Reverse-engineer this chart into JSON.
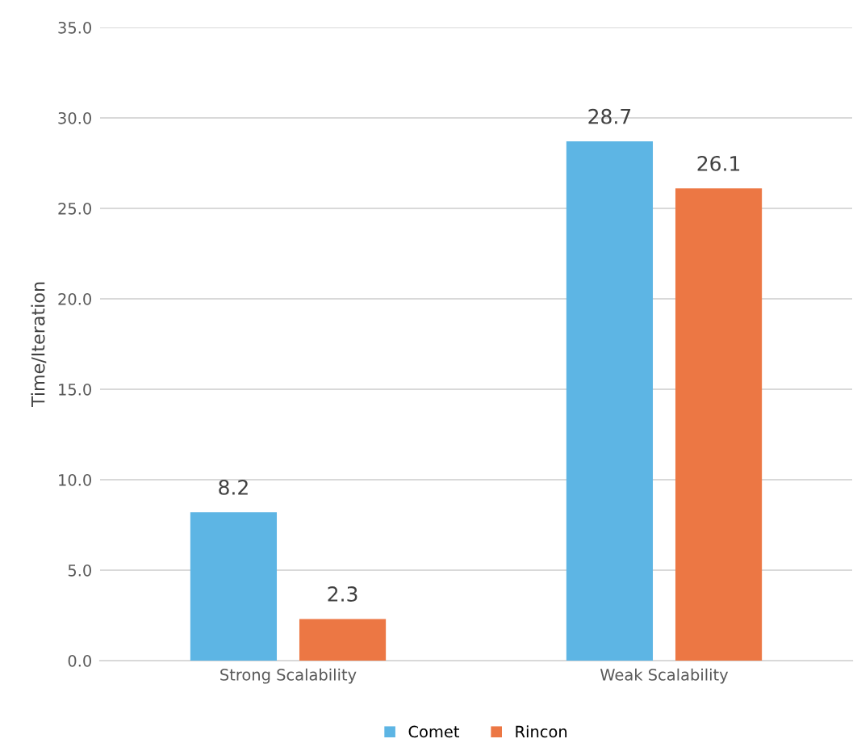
{
  "chart_data": {
    "type": "bar",
    "ylabel": "Time/Iteration",
    "categories": [
      "Strong Scalability",
      "Weak Scalability"
    ],
    "series": [
      {
        "name": "Comet",
        "color": "#5db5e4",
        "values": [
          8.2,
          28.7
        ]
      },
      {
        "name": "Rincon",
        "color": "#ec7744",
        "values": [
          2.3,
          26.1
        ]
      }
    ],
    "ylim": [
      0,
      35
    ],
    "yticks": [
      {
        "value": 0,
        "label": "0.0"
      },
      {
        "value": 5,
        "label": "5.0"
      },
      {
        "value": 10,
        "label": "10.0"
      },
      {
        "value": 15,
        "label": "15.0"
      },
      {
        "value": 20,
        "label": "20.0"
      },
      {
        "value": 25,
        "label": "25.0"
      },
      {
        "value": 30,
        "label": "30.0"
      },
      {
        "value": 35,
        "label": "35.0"
      }
    ],
    "grid": "y",
    "legend": "bottom",
    "data_labels": true
  }
}
